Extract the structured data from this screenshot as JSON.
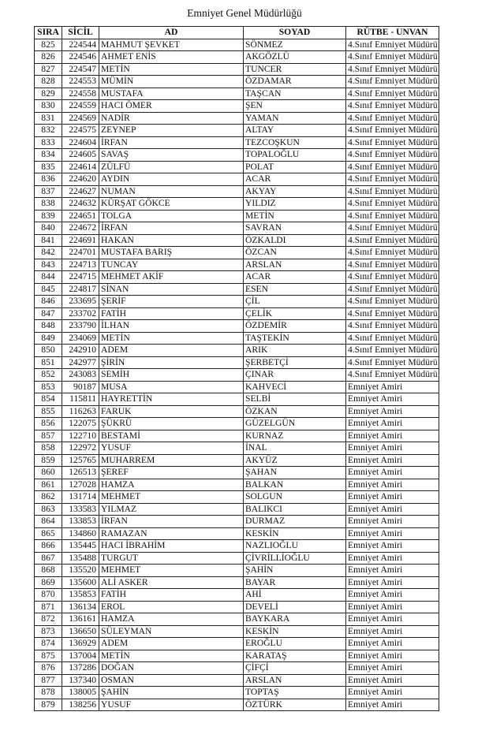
{
  "title": "Emniyet Genel Müdürlüğü",
  "columns": [
    "SIRA",
    "SİCİL",
    "AD",
    "SOYAD",
    "RÜTBE - UNVAN"
  ],
  "rows": [
    [
      "825",
      "224544",
      "MAHMUT ŞEVKET",
      "SÖNMEZ",
      "4.Sınıf Emniyet Müdürü"
    ],
    [
      "826",
      "224546",
      "AHMET ENİS",
      "AKGÖZLÜ",
      "4.Sınıf Emniyet Müdürü"
    ],
    [
      "827",
      "224547",
      "METİN",
      "TUNCER",
      "4.Sınıf Emniyet Müdürü"
    ],
    [
      "828",
      "224553",
      "MÜMİN",
      "ÖZDAMAR",
      "4.Sınıf Emniyet Müdürü"
    ],
    [
      "829",
      "224558",
      "MUSTAFA",
      "TAŞCAN",
      "4.Sınıf Emniyet Müdürü"
    ],
    [
      "830",
      "224559",
      "HACI ÖMER",
      "ŞEN",
      "4.Sınıf Emniyet Müdürü"
    ],
    [
      "831",
      "224569",
      "NADİR",
      "YAMAN",
      "4.Sınıf Emniyet Müdürü"
    ],
    [
      "832",
      "224575",
      "ZEYNEP",
      "ALTAY",
      "4.Sınıf Emniyet Müdürü"
    ],
    [
      "833",
      "224604",
      "İRFAN",
      "TEZCOŞKUN",
      "4.Sınıf Emniyet Müdürü"
    ],
    [
      "834",
      "224605",
      "SAVAŞ",
      "TOPALOĞLU",
      "4.Sınıf Emniyet Müdürü"
    ],
    [
      "835",
      "224614",
      "ZÜLFÜ",
      "POLAT",
      "4.Sınıf Emniyet Müdürü"
    ],
    [
      "836",
      "224620",
      "AYDIN",
      "ACAR",
      "4.Sınıf Emniyet Müdürü"
    ],
    [
      "837",
      "224627",
      "NUMAN",
      "AKYAY",
      "4.Sınıf Emniyet Müdürü"
    ],
    [
      "838",
      "224632",
      "KÜRŞAT GÖKCE",
      "YILDIZ",
      "4.Sınıf Emniyet Müdürü"
    ],
    [
      "839",
      "224651",
      "TOLGA",
      "METİN",
      "4.Sınıf Emniyet Müdürü"
    ],
    [
      "840",
      "224672",
      "İRFAN",
      "SAVRAN",
      "4.Sınıf Emniyet Müdürü"
    ],
    [
      "841",
      "224691",
      "HAKAN",
      "ÖZKALDI",
      "4.Sınıf Emniyet Müdürü"
    ],
    [
      "842",
      "224701",
      "MUSTAFA BARIŞ",
      "ÖZCAN",
      "4.Sınıf Emniyet Müdürü"
    ],
    [
      "843",
      "224713",
      "TUNCAY",
      "ARSLAN",
      "4.Sınıf Emniyet Müdürü"
    ],
    [
      "844",
      "224715",
      "MEHMET AKİF",
      "ACAR",
      "4.Sınıf Emniyet Müdürü"
    ],
    [
      "845",
      "224817",
      "SİNAN",
      "ESEN",
      "4.Sınıf Emniyet Müdürü"
    ],
    [
      "846",
      "233695",
      "ŞERİF",
      "ÇİL",
      "4.Sınıf Emniyet Müdürü"
    ],
    [
      "847",
      "233702",
      "FATİH",
      "ÇELİK",
      "4.Sınıf Emniyet Müdürü"
    ],
    [
      "848",
      "233790",
      "İLHAN",
      "ÖZDEMİR",
      "4.Sınıf Emniyet Müdürü"
    ],
    [
      "849",
      "234069",
      "METİN",
      "TAŞTEKİN",
      "4.Sınıf Emniyet Müdürü"
    ],
    [
      "850",
      "242910",
      "ADEM",
      "ARIK",
      "4.Sınıf Emniyet Müdürü"
    ],
    [
      "851",
      "242977",
      "ŞİRİN",
      "ŞERBETÇİ",
      "4.Sınıf Emniyet Müdürü"
    ],
    [
      "852",
      "243083",
      "SEMİH",
      "ÇINAR",
      "4.Sınıf Emniyet Müdürü"
    ],
    [
      "853",
      "90187",
      "MUSA",
      "KAHVECİ",
      "Emniyet Amiri"
    ],
    [
      "854",
      "115811",
      "HAYRETTİN",
      "SELBİ",
      "Emniyet Amiri"
    ],
    [
      "855",
      "116263",
      "FARUK",
      "ÖZKAN",
      "Emniyet Amiri"
    ],
    [
      "856",
      "122075",
      "ŞÜKRÜ",
      "GÜZELGÜN",
      "Emniyet Amiri"
    ],
    [
      "857",
      "122710",
      "BESTAMİ",
      "KURNAZ",
      "Emniyet Amiri"
    ],
    [
      "858",
      "122972",
      "YUSUF",
      "İNAL",
      "Emniyet Amiri"
    ],
    [
      "859",
      "125765",
      "MUHARREM",
      "AKYÜZ",
      "Emniyet Amiri"
    ],
    [
      "860",
      "126513",
      "ŞEREF",
      "ŞAHAN",
      "Emniyet Amiri"
    ],
    [
      "861",
      "127028",
      "HAMZA",
      "BALKAN",
      "Emniyet Amiri"
    ],
    [
      "862",
      "131714",
      "MEHMET",
      "SOLGUN",
      "Emniyet Amiri"
    ],
    [
      "863",
      "133583",
      "YILMAZ",
      "BALIKCI",
      "Emniyet Amiri"
    ],
    [
      "864",
      "133853",
      "İRFAN",
      "DURMAZ",
      "Emniyet Amiri"
    ],
    [
      "865",
      "134860",
      "RAMAZAN",
      "KESKİN",
      "Emniyet Amiri"
    ],
    [
      "866",
      "135445",
      "HACI İBRAHİM",
      "NAZLIOĞLU",
      "Emniyet Amiri"
    ],
    [
      "867",
      "135488",
      "TURGUT",
      "ÇİVRİLLİOĞLU",
      "Emniyet Amiri"
    ],
    [
      "868",
      "135520",
      "MEHMET",
      "ŞAHİN",
      "Emniyet Amiri"
    ],
    [
      "869",
      "135600",
      "ALİ ASKER",
      "BAYAR",
      "Emniyet Amiri"
    ],
    [
      "870",
      "135853",
      "FATİH",
      "AHİ",
      "Emniyet Amiri"
    ],
    [
      "871",
      "136134",
      "EROL",
      "DEVELİ",
      "Emniyet Amiri"
    ],
    [
      "872",
      "136161",
      "HAMZA",
      "BAYKARA",
      "Emniyet Amiri"
    ],
    [
      "873",
      "136650",
      "SÜLEYMAN",
      "KESKİN",
      "Emniyet Amiri"
    ],
    [
      "874",
      "136929",
      "ADEM",
      "EROĞLU",
      "Emniyet Amiri"
    ],
    [
      "875",
      "137004",
      "METİN",
      "KARATAŞ",
      "Emniyet Amiri"
    ],
    [
      "876",
      "137286",
      "DOĞAN",
      "ÇİFÇİ",
      "Emniyet Amiri"
    ],
    [
      "877",
      "137340",
      "OSMAN",
      "ARSLAN",
      "Emniyet Amiri"
    ],
    [
      "878",
      "138005",
      "ŞAHİN",
      "TOPTAŞ",
      "Emniyet Amiri"
    ],
    [
      "879",
      "138256",
      "YUSUF",
      "ÖZTÜRK",
      "Emniyet Amiri"
    ]
  ]
}
